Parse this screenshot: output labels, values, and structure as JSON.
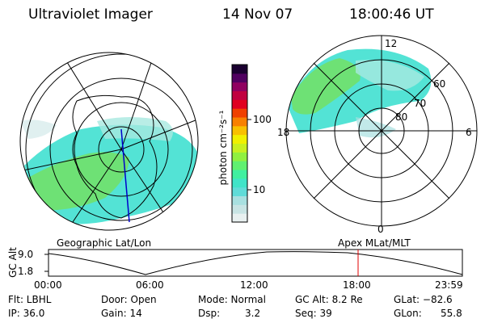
{
  "header": {
    "title": "Ultraviolet Imager",
    "date": "14 Nov 07",
    "time": "18:00:46 UT"
  },
  "colorbar": {
    "unit_label": "photon cm⁻²s⁻¹",
    "ticks": [
      "100",
      "10"
    ],
    "colors": [
      "#e8f0f0",
      "#c8e4e4",
      "#a8e0e0",
      "#60dcd8",
      "#40e4c8",
      "#40f0a0",
      "#60f070",
      "#90f040",
      "#c8f020",
      "#f0f000",
      "#f8c000",
      "#f88000",
      "#f04000",
      "#e00020",
      "#c00040",
      "#900060",
      "#500060",
      "#1a0030"
    ]
  },
  "left_map": {
    "caption": "Geographic Lat/Lon"
  },
  "right_map": {
    "caption": "Apex MLat/MLT",
    "mlt_labels": {
      "top": "12",
      "left": "18",
      "right": "6",
      "bottom": "0"
    },
    "lat_labels": [
      "60",
      "70",
      "80"
    ]
  },
  "altitude_plot": {
    "ylabel": "GC Alt",
    "yticks": [
      "9.0",
      "1.8"
    ],
    "xticks": [
      "00:00",
      "06:00",
      "12:00",
      "18:00",
      "23:59"
    ]
  },
  "info": {
    "row1": [
      "Flt: LBHL",
      "Door: Open",
      "Mode: Normal",
      "GC Alt: 8.2 Re",
      "GLat: −82.6"
    ],
    "row2": [
      "IP: 36.0",
      "Gain: 14",
      "Dsp:",
      "3.2",
      "Seq: 39",
      "GLon:",
      "55.8"
    ]
  }
}
